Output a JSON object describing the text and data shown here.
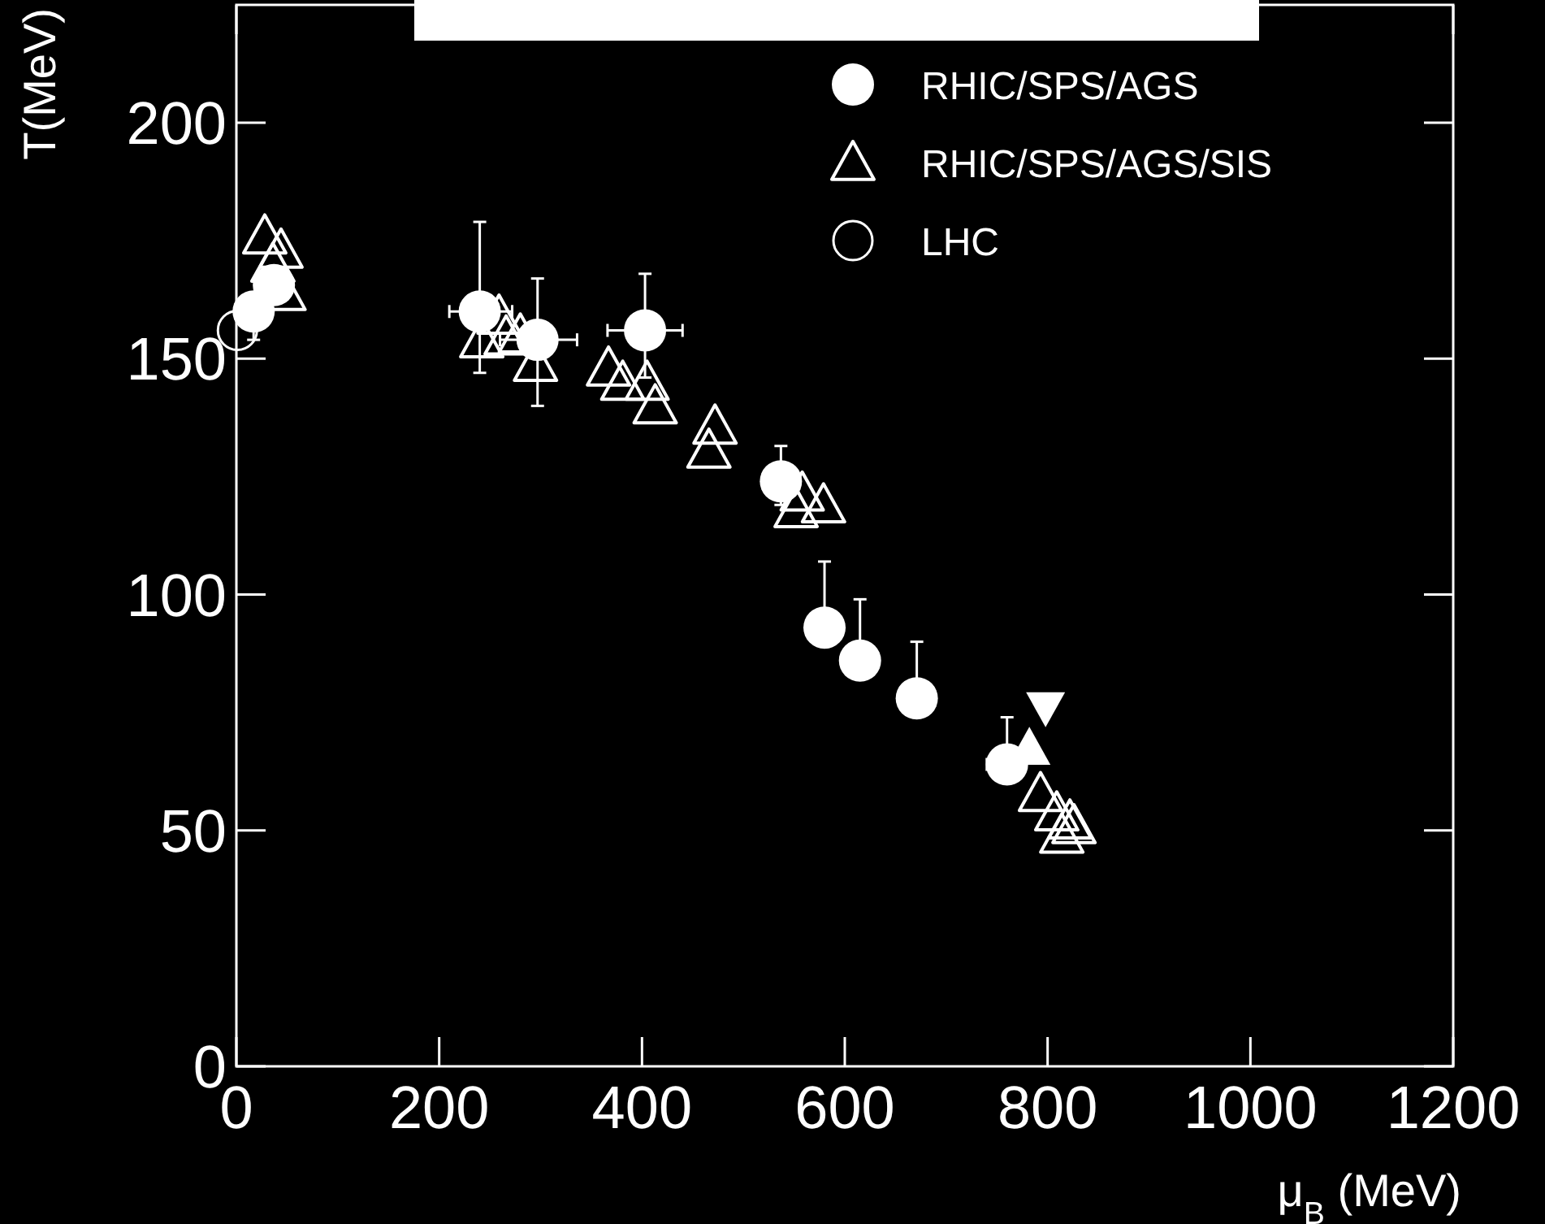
{
  "chart_data": {
    "type": "scatter",
    "xlabel": "μ$_{B}$ (MeV)",
    "ylabel": "T(MeV)",
    "xlim": [
      0,
      1200
    ],
    "ylim": [
      0,
      225
    ],
    "xticks": [
      0,
      200,
      400,
      600,
      800,
      1000,
      1200
    ],
    "yticks": [
      0,
      50,
      100,
      150,
      200
    ],
    "grid": false,
    "legend": "top right",
    "series": [
      {
        "name": "RHIC/SPS/AGS",
        "color": "#ffffff",
        "marker": "circle",
        "x": [
          17,
          37,
          240,
          297,
          403,
          537,
          580,
          615,
          671,
          760
        ],
        "values": [
          160,
          165.6,
          160,
          154,
          156,
          124,
          93,
          86,
          78,
          64
        ],
        "errors": [
          [
            154,
            160
          ],
          null,
          [
            147,
            179
          ],
          [
            140,
            167
          ],
          [
            146,
            168
          ],
          [
            119,
            131.5
          ],
          [
            93,
            107
          ],
          [
            86,
            99
          ],
          [
            78,
            90
          ],
          [
            64,
            74
          ]
        ],
        "xerrors": [
          null,
          null,
          [
            210,
            272
          ],
          [
            260,
            336
          ],
          [
            366,
            440
          ],
          null,
          null,
          null,
          [
            656,
            686
          ],
          [
            740,
            760
          ]
        ]
      },
      {
        "name": "RHIC/SPS/AGS/SIS",
        "color": "#ffffff",
        "marker": "triangle-open",
        "x": [
          28,
          44,
          36,
          47,
          242,
          259,
          266,
          280,
          295,
          367,
          381,
          405,
          413,
          472,
          466,
          558,
          579,
          552,
          793,
          809,
          822,
          814,
          826
        ],
        "values": [
          176,
          173,
          170,
          164,
          154,
          159,
          154.6,
          155,
          149,
          148,
          145,
          145,
          140,
          135.7,
          130.6,
          121.5,
          119,
          118,
          57.8,
          53.7,
          52,
          49,
          51
        ]
      },
      {
        "name": "LHC",
        "color": "#ffffff",
        "marker": "circle-open",
        "x": [
          1
        ],
        "values": [
          156
        ]
      },
      {
        "color": "#ffffff",
        "marker": "triangle",
        "x": [
          782
        ],
        "values": [
          67.5
        ]
      },
      {
        "color": "#ffffff",
        "marker": "triangle-down",
        "x": [
          798
        ],
        "values": [
          76
        ]
      }
    ]
  }
}
